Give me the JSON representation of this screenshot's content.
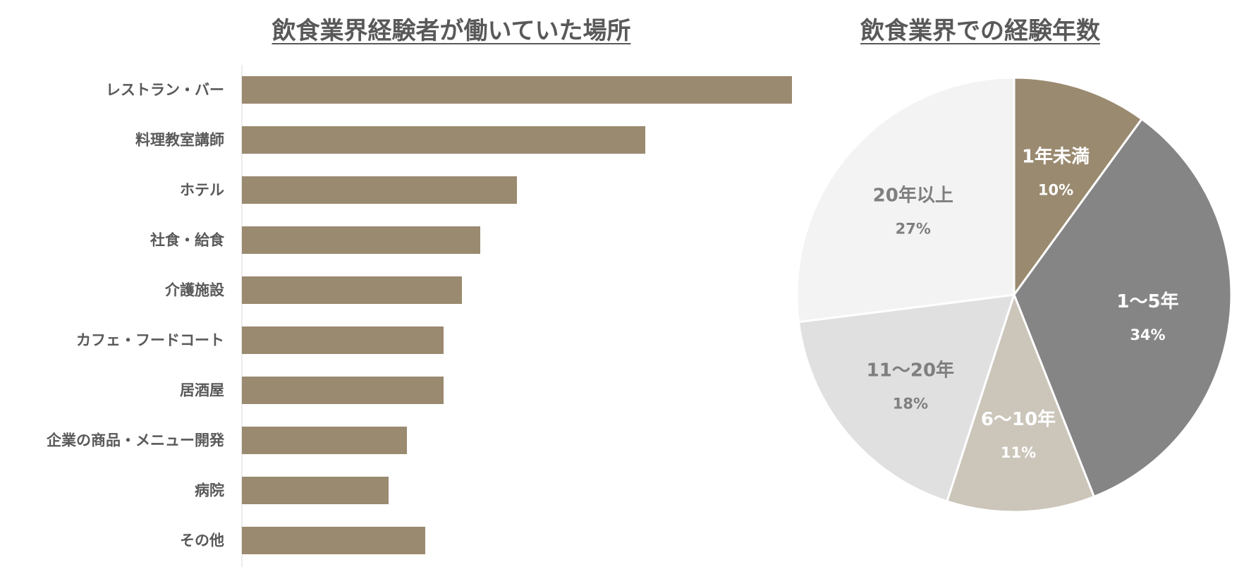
{
  "chart_data": [
    {
      "type": "bar",
      "orientation": "horizontal",
      "title": "飲食業界経験者が働いていた場所",
      "categories": [
        "レストラン・バー",
        "料理教室講師",
        "ホテル",
        "社食・給食",
        "介護施設",
        "カフェ・フードコート",
        "居酒屋",
        "企業の商品・メニュー開発",
        "病院",
        "その他"
      ],
      "values": [
        30,
        22,
        15,
        13,
        12,
        11,
        11,
        9,
        8,
        10
      ],
      "xlim": [
        0,
        30
      ],
      "color": "#9a8a70",
      "grid": false
    },
    {
      "type": "pie",
      "title": "飲食業界での経験年数",
      "slices": [
        {
          "label": "1年未満",
          "percent_label": "10%",
          "value": 10,
          "color": "#9a8a70",
          "text_color": "#ffffff"
        },
        {
          "label": "1～5年",
          "percent_label": "34%",
          "value": 34,
          "color": "#858585",
          "text_color": "#ffffff"
        },
        {
          "label": "6～10年",
          "percent_label": "11%",
          "value": 11,
          "color": "#cbc5ba",
          "text_color": "#ffffff"
        },
        {
          "label": "11～20年",
          "percent_label": "18%",
          "value": 18,
          "color": "#e0e0e0",
          "text_color": "#7f7f7f"
        },
        {
          "label": "20年以上",
          "percent_label": "27%",
          "value": 27,
          "color": "#f3f3f3",
          "text_color": "#7f7f7f"
        }
      ],
      "start": "12 o'clock",
      "direction": "clockwise"
    }
  ]
}
